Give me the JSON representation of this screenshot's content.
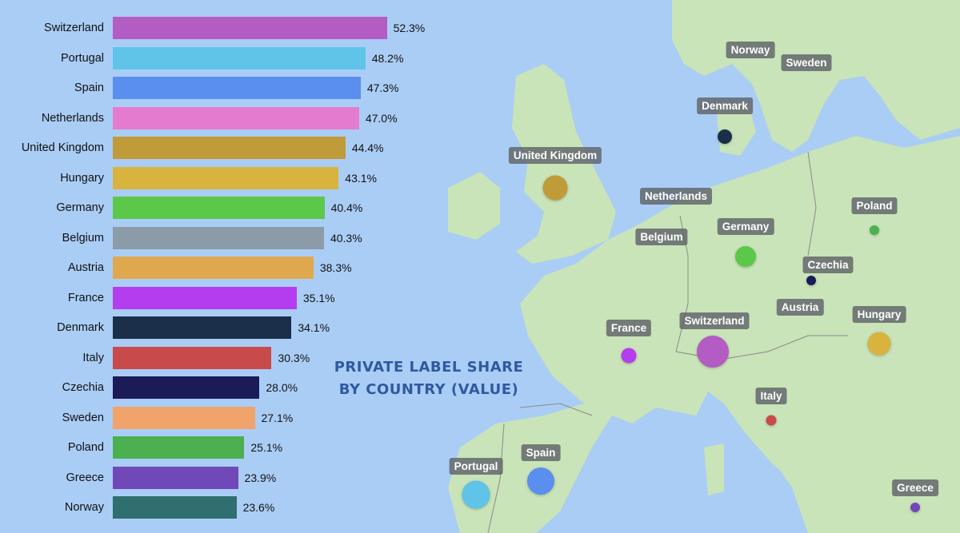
{
  "chart_data": {
    "type": "bar",
    "orientation": "horizontal",
    "title": "PRIVATE LABEL SHARE\nBY COUNTRY (VALUE)",
    "xlim": [
      0,
      60
    ],
    "grid": false,
    "categories": [
      "Switzerland",
      "Portugal",
      "Spain",
      "Netherlands",
      "United Kingdom",
      "Hungary",
      "Germany",
      "Belgium",
      "Austria",
      "France",
      "Denmark",
      "Italy",
      "Czechia",
      "Sweden",
      "Poland",
      "Greece",
      "Norway"
    ],
    "values": [
      52.3,
      48.2,
      47.3,
      47.0,
      44.4,
      43.1,
      40.4,
      40.3,
      38.3,
      35.1,
      34.1,
      30.3,
      28.0,
      27.1,
      25.1,
      23.9,
      23.6
    ],
    "value_labels": [
      "52.3%",
      "48.2%",
      "47.3%",
      "47.0%",
      "44.4%",
      "43.1%",
      "40.4%",
      "40.3%",
      "38.3%",
      "35.1%",
      "34.1%",
      "30.3%",
      "28.0%",
      "27.1%",
      "25.1%",
      "23.9%",
      "23.6%"
    ],
    "colors": [
      "#b35cc4",
      "#5fc4e8",
      "#5a8ff0",
      "#e47bcf",
      "#c09b3a",
      "#d8b43f",
      "#5cc84a",
      "#8c9ba8",
      "#e0a84e",
      "#b43df0",
      "#1b2f4a",
      "#c94a4a",
      "#1b1b5a",
      "#f0a36a",
      "#4caf50",
      "#7148b8",
      "#2f6f6f"
    ]
  },
  "map": {
    "water_color": "#aacdf5",
    "land_color": "#c9e4b8",
    "countries": [
      {
        "name": "Norway",
        "color": "#2f6f6f",
        "show_marker": false
      },
      {
        "name": "Sweden",
        "color": "#f0a36a",
        "show_marker": false
      },
      {
        "name": "Denmark",
        "color": "#1b2f4a",
        "show_marker": true
      },
      {
        "name": "United Kingdom",
        "color": "#c09b3a",
        "show_marker": true
      },
      {
        "name": "Netherlands",
        "color": "#e47bcf",
        "show_marker": false
      },
      {
        "name": "Belgium",
        "color": "#8c9ba8",
        "show_marker": false
      },
      {
        "name": "Germany",
        "color": "#5cc84a",
        "show_marker": true
      },
      {
        "name": "Poland",
        "color": "#4caf50",
        "show_marker": true
      },
      {
        "name": "Czechia",
        "color": "#1b1b5a",
        "show_marker": true
      },
      {
        "name": "Austria",
        "color": "#e0a84e",
        "show_marker": false
      },
      {
        "name": "Hungary",
        "color": "#d8b43f",
        "show_marker": true
      },
      {
        "name": "France",
        "color": "#b43df0",
        "show_marker": true
      },
      {
        "name": "Switzerland",
        "color": "#b35cc4",
        "show_marker": true
      },
      {
        "name": "Italy",
        "color": "#c94a4a",
        "show_marker": true
      },
      {
        "name": "Portugal",
        "color": "#5fc4e8",
        "show_marker": true
      },
      {
        "name": "Spain",
        "color": "#5a8ff0",
        "show_marker": true
      },
      {
        "name": "Greece",
        "color": "#7148b8",
        "show_marker": true
      }
    ]
  }
}
